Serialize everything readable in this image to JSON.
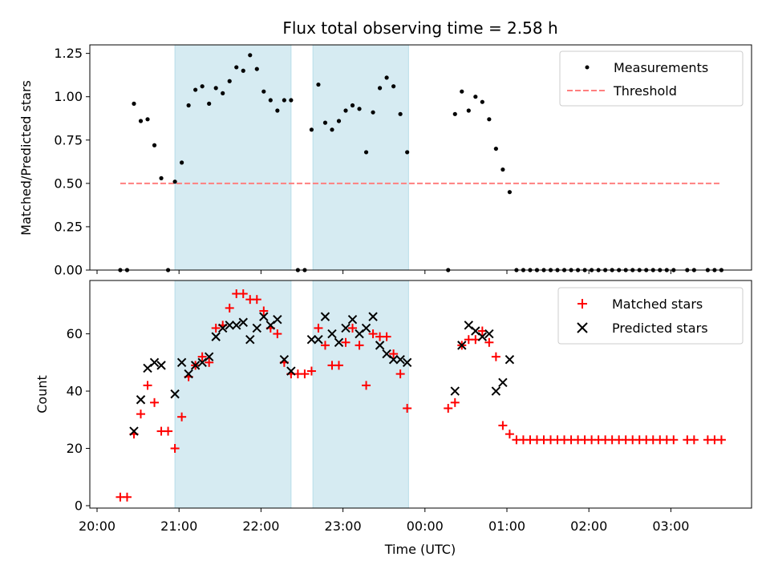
{
  "title": "Flux total observing time = 2.58 h",
  "colors": {
    "measurements": "#000000",
    "threshold": "#ff7f7f",
    "matched": "#ff0000",
    "predicted": "#000000",
    "span": "#add8e6"
  },
  "chart_data": [
    {
      "type": "scatter",
      "title": "Flux total observing time = 2.58 h",
      "xlabel": "",
      "ylabel": "Matched/Predicted stars",
      "ylim": [
        0,
        1.31
      ],
      "y_ticks": [
        "0.00",
        "0.25",
        "0.50",
        "0.75",
        "1.00",
        "1.25"
      ],
      "legend_position": "top-right",
      "highlight_spans": [
        {
          "start": "20:57",
          "end": "22:22"
        },
        {
          "start": "22:38",
          "end": "23:48"
        }
      ],
      "series": [
        {
          "name": "Measurements",
          "marker": "dot",
          "points": [
            [
              "20:17",
              0.0
            ],
            [
              "20:22",
              0.0
            ],
            [
              "20:27",
              0.96
            ],
            [
              "20:32",
              0.86
            ],
            [
              "20:37",
              0.87
            ],
            [
              "20:42",
              0.72
            ],
            [
              "20:47",
              0.53
            ],
            [
              "20:52",
              0.0
            ],
            [
              "20:57",
              0.51
            ],
            [
              "21:02",
              0.62
            ],
            [
              "21:07",
              0.95
            ],
            [
              "21:12",
              1.04
            ],
            [
              "21:17",
              1.06
            ],
            [
              "21:22",
              0.96
            ],
            [
              "21:27",
              1.05
            ],
            [
              "21:32",
              1.02
            ],
            [
              "21:37",
              1.09
            ],
            [
              "21:42",
              1.17
            ],
            [
              "21:47",
              1.15
            ],
            [
              "21:52",
              1.24
            ],
            [
              "21:57",
              1.16
            ],
            [
              "22:02",
              1.03
            ],
            [
              "22:07",
              0.98
            ],
            [
              "22:12",
              0.92
            ],
            [
              "22:17",
              0.98
            ],
            [
              "22:22",
              0.98
            ],
            [
              "22:27",
              0.0
            ],
            [
              "22:32",
              0.0
            ],
            [
              "22:37",
              0.81
            ],
            [
              "22:42",
              1.07
            ],
            [
              "22:47",
              0.85
            ],
            [
              "22:52",
              0.81
            ],
            [
              "22:57",
              0.86
            ],
            [
              "23:02",
              0.92
            ],
            [
              "23:07",
              0.95
            ],
            [
              "23:12",
              0.93
            ],
            [
              "23:17",
              0.68
            ],
            [
              "23:22",
              0.91
            ],
            [
              "23:27",
              1.05
            ],
            [
              "23:32",
              1.11
            ],
            [
              "23:37",
              1.06
            ],
            [
              "23:42",
              0.9
            ],
            [
              "23:47",
              0.68
            ],
            [
              "00:17",
              0.0
            ],
            [
              "00:22",
              0.9
            ],
            [
              "00:27",
              1.03
            ],
            [
              "00:32",
              0.92
            ],
            [
              "00:37",
              1.0
            ],
            [
              "00:42",
              0.97
            ],
            [
              "00:47",
              0.87
            ],
            [
              "00:52",
              0.7
            ],
            [
              "00:57",
              0.58
            ],
            [
              "01:02",
              0.45
            ],
            [
              "01:07",
              0.0
            ],
            [
              "01:12",
              0.0
            ],
            [
              "01:17",
              0.0
            ],
            [
              "01:22",
              0.0
            ],
            [
              "01:27",
              0.0
            ],
            [
              "01:32",
              0.0
            ],
            [
              "01:37",
              0.0
            ],
            [
              "01:42",
              0.0
            ],
            [
              "01:47",
              0.0
            ],
            [
              "01:52",
              0.0
            ],
            [
              "01:57",
              0.0
            ],
            [
              "02:02",
              0.0
            ],
            [
              "02:07",
              0.0
            ],
            [
              "02:12",
              0.0
            ],
            [
              "02:17",
              0.0
            ],
            [
              "02:22",
              0.0
            ],
            [
              "02:27",
              0.0
            ],
            [
              "02:32",
              0.0
            ],
            [
              "02:37",
              0.0
            ],
            [
              "02:42",
              0.0
            ],
            [
              "02:47",
              0.0
            ],
            [
              "02:52",
              0.0
            ],
            [
              "02:57",
              0.0
            ],
            [
              "03:02",
              0.0
            ],
            [
              "03:12",
              0.0
            ],
            [
              "03:17",
              0.0
            ],
            [
              "03:27",
              0.0
            ],
            [
              "03:32",
              0.0
            ],
            [
              "03:37",
              0.0
            ]
          ]
        },
        {
          "name": "Threshold",
          "marker": "dashed-line",
          "points": [
            [
              "20:17",
              0.5
            ],
            [
              "03:37",
              0.5
            ]
          ]
        }
      ]
    },
    {
      "type": "scatter",
      "title": "",
      "xlabel": "Time (UTC)",
      "ylabel": "Count",
      "ylim": [
        0,
        77
      ],
      "x_ticks": [
        "20:00",
        "21:00",
        "22:00",
        "23:00",
        "00:00",
        "01:00",
        "02:00",
        "03:00"
      ],
      "y_ticks": [
        "0",
        "20",
        "40",
        "60"
      ],
      "legend_position": "top-right",
      "highlight_spans": [
        {
          "start": "20:57",
          "end": "22:22"
        },
        {
          "start": "22:38",
          "end": "23:48"
        }
      ],
      "series": [
        {
          "name": "Matched stars",
          "marker": "plus",
          "points": [
            [
              "20:17",
              3
            ],
            [
              "20:22",
              3
            ],
            [
              "20:27",
              25
            ],
            [
              "20:32",
              32
            ],
            [
              "20:37",
              42
            ],
            [
              "20:42",
              36
            ],
            [
              "20:47",
              26
            ],
            [
              "20:52",
              26
            ],
            [
              "20:57",
              20
            ],
            [
              "21:02",
              31
            ],
            [
              "21:07",
              45
            ],
            [
              "21:12",
              49
            ],
            [
              "21:17",
              52
            ],
            [
              "21:22",
              50
            ],
            [
              "21:27",
              62
            ],
            [
              "21:32",
              63
            ],
            [
              "21:37",
              69
            ],
            [
              "21:42",
              74
            ],
            [
              "21:47",
              74
            ],
            [
              "21:52",
              72
            ],
            [
              "21:57",
              72
            ],
            [
              "22:02",
              68
            ],
            [
              "22:07",
              62
            ],
            [
              "22:12",
              60
            ],
            [
              "22:17",
              50
            ],
            [
              "22:22",
              46
            ],
            [
              "22:27",
              46
            ],
            [
              "22:32",
              46
            ],
            [
              "22:37",
              47
            ],
            [
              "22:42",
              62
            ],
            [
              "22:47",
              56
            ],
            [
              "22:52",
              49
            ],
            [
              "22:57",
              49
            ],
            [
              "23:02",
              57
            ],
            [
              "23:07",
              62
            ],
            [
              "23:12",
              56
            ],
            [
              "23:17",
              42
            ],
            [
              "23:22",
              60
            ],
            [
              "23:27",
              59
            ],
            [
              "23:32",
              59
            ],
            [
              "23:37",
              53
            ],
            [
              "23:42",
              46
            ],
            [
              "23:47",
              34
            ],
            [
              "00:17",
              34
            ],
            [
              "00:22",
              36
            ],
            [
              "00:27",
              56
            ],
            [
              "00:32",
              58
            ],
            [
              "00:37",
              58
            ],
            [
              "00:42",
              61
            ],
            [
              "00:47",
              57
            ],
            [
              "00:52",
              52
            ],
            [
              "00:57",
              28
            ],
            [
              "01:02",
              25
            ],
            [
              "01:07",
              23
            ],
            [
              "01:12",
              23
            ],
            [
              "01:17",
              23
            ],
            [
              "01:22",
              23
            ],
            [
              "01:27",
              23
            ],
            [
              "01:32",
              23
            ],
            [
              "01:37",
              23
            ],
            [
              "01:42",
              23
            ],
            [
              "01:47",
              23
            ],
            [
              "01:52",
              23
            ],
            [
              "01:57",
              23
            ],
            [
              "02:02",
              23
            ],
            [
              "02:07",
              23
            ],
            [
              "02:12",
              23
            ],
            [
              "02:17",
              23
            ],
            [
              "02:22",
              23
            ],
            [
              "02:27",
              23
            ],
            [
              "02:32",
              23
            ],
            [
              "02:37",
              23
            ],
            [
              "02:42",
              23
            ],
            [
              "02:47",
              23
            ],
            [
              "02:52",
              23
            ],
            [
              "02:57",
              23
            ],
            [
              "03:02",
              23
            ],
            [
              "03:12",
              23
            ],
            [
              "03:17",
              23
            ],
            [
              "03:27",
              23
            ],
            [
              "03:32",
              23
            ],
            [
              "03:37",
              23
            ]
          ]
        },
        {
          "name": "Predicted stars",
          "marker": "x",
          "points": [
            [
              "20:27",
              26
            ],
            [
              "20:32",
              37
            ],
            [
              "20:37",
              48
            ],
            [
              "20:42",
              50
            ],
            [
              "20:47",
              49
            ],
            [
              "20:57",
              39
            ],
            [
              "21:02",
              50
            ],
            [
              "21:07",
              46
            ],
            [
              "21:12",
              49
            ],
            [
              "21:17",
              50
            ],
            [
              "21:22",
              52
            ],
            [
              "21:27",
              59
            ],
            [
              "21:32",
              62
            ],
            [
              "21:37",
              63
            ],
            [
              "21:42",
              63
            ],
            [
              "21:47",
              64
            ],
            [
              "21:52",
              58
            ],
            [
              "21:57",
              62
            ],
            [
              "22:02",
              66
            ],
            [
              "22:07",
              63
            ],
            [
              "22:12",
              65
            ],
            [
              "22:17",
              51
            ],
            [
              "22:22",
              47
            ],
            [
              "22:37",
              58
            ],
            [
              "22:42",
              58
            ],
            [
              "22:47",
              66
            ],
            [
              "22:52",
              60
            ],
            [
              "22:57",
              57
            ],
            [
              "23:02",
              62
            ],
            [
              "23:07",
              65
            ],
            [
              "23:12",
              60
            ],
            [
              "23:17",
              62
            ],
            [
              "23:22",
              66
            ],
            [
              "23:27",
              56
            ],
            [
              "23:32",
              53
            ],
            [
              "23:37",
              51
            ],
            [
              "23:42",
              51
            ],
            [
              "23:47",
              50
            ],
            [
              "00:22",
              40
            ],
            [
              "00:27",
              56
            ],
            [
              "00:32",
              63
            ],
            [
              "00:37",
              61
            ],
            [
              "00:42",
              59
            ],
            [
              "00:47",
              60
            ],
            [
              "00:52",
              40
            ],
            [
              "00:57",
              43
            ],
            [
              "01:02",
              51
            ]
          ]
        }
      ]
    }
  ]
}
